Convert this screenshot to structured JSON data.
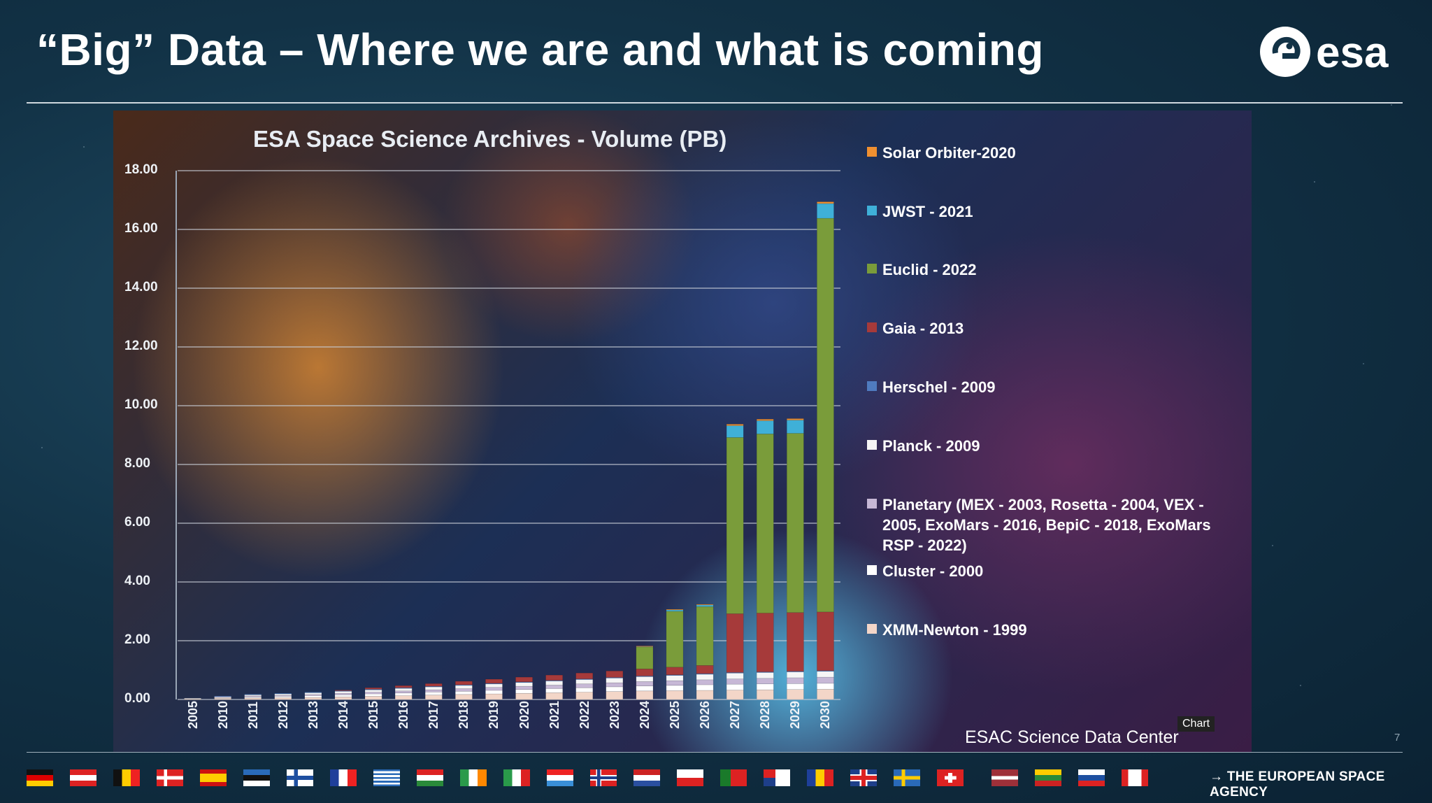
{
  "slide": {
    "title": "“Big” Data – Where we are and what is coming",
    "logo_text": "esa",
    "source": "ESAC Science Data Center",
    "chart_tag": "Chart",
    "page_number": "7",
    "agency": "→ THE EUROPEAN SPACE AGENCY",
    "flags": [
      "germany",
      "austria",
      "belgium",
      "denmark",
      "spain",
      "estonia",
      "finland",
      "france",
      "greece",
      "hungary",
      "ireland",
      "italy",
      "luxembourg",
      "norway",
      "netherlands",
      "poland",
      "portugal",
      "czech-republic",
      "romania",
      "united-kingdom",
      "sweden",
      "switzerland",
      "latvia",
      "lithuania",
      "slovenia",
      "canada"
    ]
  },
  "chart_data": {
    "type": "bar",
    "stacked": true,
    "title": "ESA Space Science Archives - Volume (PB)",
    "xlabel": "",
    "ylabel": "",
    "ylim": [
      0,
      18
    ],
    "yticks": [
      "0.00",
      "2.00",
      "4.00",
      "6.00",
      "8.00",
      "10.00",
      "12.00",
      "14.00",
      "16.00",
      "18.00"
    ],
    "grid": true,
    "legend_position": "right",
    "categories": [
      "2005",
      "2010",
      "2011",
      "2012",
      "2013",
      "2014",
      "2015",
      "2016",
      "2017",
      "2018",
      "2019",
      "2020",
      "2021",
      "2022",
      "2023",
      "2024",
      "2025",
      "2026",
      "2027",
      "2028",
      "2029",
      "2030"
    ],
    "series": [
      {
        "name": "XMM-Newton - 1999",
        "color": "#f3d6c8",
        "values": [
          0.02,
          0.04,
          0.05,
          0.06,
          0.07,
          0.09,
          0.11,
          0.13,
          0.15,
          0.17,
          0.19,
          0.21,
          0.23,
          0.25,
          0.27,
          0.29,
          0.3,
          0.31,
          0.32,
          0.33,
          0.34,
          0.35
        ]
      },
      {
        "name": "Cluster - 2000",
        "color": "#ffffff",
        "values": [
          0.02,
          0.03,
          0.04,
          0.05,
          0.06,
          0.07,
          0.08,
          0.09,
          0.1,
          0.11,
          0.12,
          0.13,
          0.14,
          0.15,
          0.16,
          0.17,
          0.18,
          0.19,
          0.2,
          0.2,
          0.2,
          0.2
        ]
      },
      {
        "name": "Planetary (MEX - 2003, Rosetta - 2004, VEX - 2005, ExoMars - 2016, BepiC - 2018, ExoMars RSP - 2022)",
        "color": "#c7b8d6",
        "values": [
          0.0,
          0.02,
          0.03,
          0.03,
          0.04,
          0.05,
          0.06,
          0.07,
          0.08,
          0.09,
          0.1,
          0.11,
          0.12,
          0.13,
          0.14,
          0.15,
          0.16,
          0.17,
          0.18,
          0.19,
          0.2,
          0.21
        ]
      },
      {
        "name": "Planck - 2009",
        "color": "#f6f6f6",
        "values": [
          0.0,
          0.02,
          0.04,
          0.05,
          0.06,
          0.07,
          0.08,
          0.09,
          0.1,
          0.11,
          0.12,
          0.13,
          0.14,
          0.15,
          0.16,
          0.17,
          0.18,
          0.19,
          0.2,
          0.2,
          0.2,
          0.2
        ]
      },
      {
        "name": "Herschel - 2009",
        "color": "#4f7bbf",
        "values": [
          0.0,
          0.01,
          0.02,
          0.02,
          0.02,
          0.02,
          0.02,
          0.02,
          0.02,
          0.02,
          0.02,
          0.02,
          0.02,
          0.02,
          0.02,
          0.02,
          0.02,
          0.02,
          0.02,
          0.02,
          0.02,
          0.02
        ]
      },
      {
        "name": "Gaia - 2013",
        "color": "#a63a3a",
        "values": [
          0,
          0,
          0,
          0,
          0.0,
          0.02,
          0.05,
          0.07,
          0.09,
          0.12,
          0.14,
          0.16,
          0.18,
          0.2,
          0.22,
          0.24,
          0.26,
          0.28,
          2.0,
          2.0,
          2.0,
          2.0
        ]
      },
      {
        "name": "Euclid - 2022",
        "color": "#7a9c3a",
        "values": [
          0,
          0,
          0,
          0,
          0,
          0,
          0,
          0,
          0,
          0,
          0,
          0,
          0,
          0,
          0,
          0.75,
          1.9,
          2.0,
          6.0,
          6.1,
          6.1,
          13.4
        ]
      },
      {
        "name": "JWST - 2021",
        "color": "#3fb0d8",
        "values": [
          0,
          0,
          0,
          0,
          0,
          0,
          0,
          0,
          0,
          0,
          0,
          0,
          0,
          0,
          0,
          0.02,
          0.05,
          0.06,
          0.4,
          0.45,
          0.45,
          0.5
        ]
      },
      {
        "name": "Solar Orbiter-2020",
        "color": "#f09030",
        "values": [
          0,
          0,
          0,
          0,
          0,
          0,
          0,
          0,
          0,
          0,
          0,
          0,
          0,
          0,
          0,
          0.01,
          0.02,
          0.02,
          0.05,
          0.05,
          0.05,
          0.06
        ]
      }
    ]
  }
}
